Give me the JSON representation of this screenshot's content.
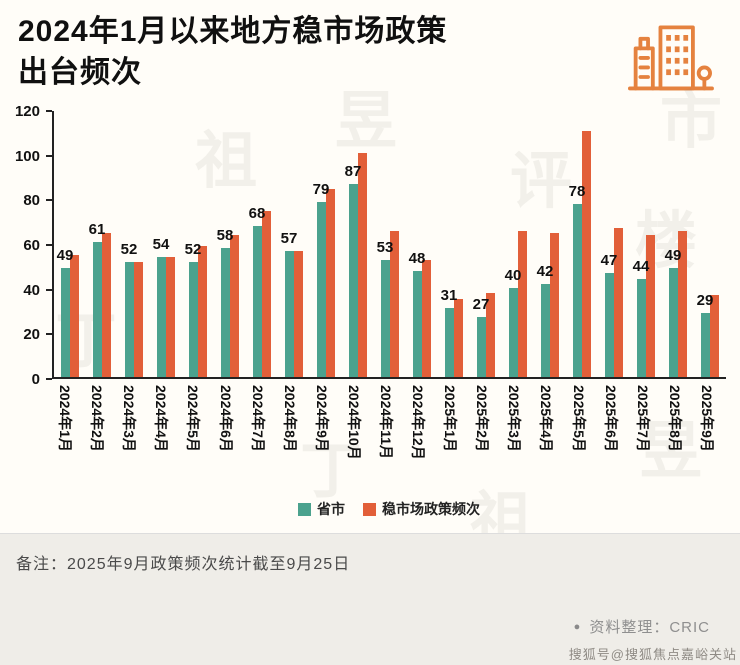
{
  "header": {
    "title_line1": "2024年1月以来地方稳市场政策",
    "title_line2": "出台频次",
    "icon": "buildings-icon",
    "icon_color": "#E5823F"
  },
  "chart_data": {
    "type": "bar",
    "title": "2024年1月以来地方稳市场政策出台频次",
    "xlabel": "",
    "ylabel": "",
    "ylim": [
      0,
      120
    ],
    "ytick_step": 20,
    "grid": false,
    "legend_position": "bottom",
    "categories": [
      "2024年1月",
      "2024年2月",
      "2024年3月",
      "2024年4月",
      "2024年5月",
      "2024年6月",
      "2024年7月",
      "2024年8月",
      "2024年9月",
      "2024年10月",
      "2024年11月",
      "2024年12月",
      "2025年1月",
      "2025年2月",
      "2025年3月",
      "2025年4月",
      "2025年5月",
      "2025年6月",
      "2025年7月",
      "2025年8月",
      "2025年9月"
    ],
    "series": [
      {
        "name": "省市",
        "color": "#4BA28E",
        "labels_shown": true,
        "values": [
          49,
          61,
          52,
          54,
          52,
          58,
          68,
          57,
          79,
          87,
          53,
          48,
          31,
          27,
          40,
          42,
          78,
          47,
          44,
          49,
          29
        ]
      },
      {
        "name": "稳市场政策频次",
        "color": "#E25F39",
        "labels_shown": false,
        "values": [
          55,
          65,
          52,
          54,
          59,
          64,
          75,
          57,
          85,
          101,
          66,
          53,
          35,
          38,
          66,
          65,
          111,
          67,
          64,
          66,
          37
        ]
      }
    ]
  },
  "footer": {
    "note": "备注：2025年9月政策频次统计截至9月25日",
    "source_bullet": "●",
    "source": "资料整理：CRIC",
    "watermark": "搜狐号@搜狐焦点嘉峪关站"
  },
  "background_watermark": "丁祖昱评楼市"
}
